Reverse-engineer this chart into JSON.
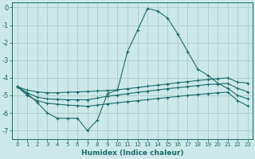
{
  "xlabel": "Humidex (Indice chaleur)",
  "background_color": "#cde8e8",
  "grid_color": "#a8cccc",
  "line_color": "#1a6b6b",
  "xlim": [
    -0.5,
    23.5
  ],
  "ylim": [
    -7.5,
    0.3
  ],
  "yticks": [
    0,
    -1,
    -2,
    -3,
    -4,
    -5,
    -6,
    -7
  ],
  "xticks": [
    0,
    1,
    2,
    3,
    4,
    5,
    6,
    7,
    8,
    9,
    10,
    11,
    12,
    13,
    14,
    15,
    16,
    17,
    18,
    19,
    20,
    21,
    22,
    23
  ],
  "series": [
    {
      "x": [
        0,
        1,
        2,
        3,
        4,
        5,
        6,
        7,
        8,
        9,
        10,
        11,
        12,
        13,
        14,
        15,
        16,
        17,
        18,
        19,
        20,
        21,
        22,
        23
      ],
      "y": [
        -4.5,
        -4.9,
        -5.4,
        -6.0,
        -6.3,
        -6.3,
        -6.3,
        -7.0,
        -6.4,
        -4.9,
        -4.7,
        -2.5,
        -1.3,
        -0.05,
        -0.2,
        -0.6,
        -1.5,
        -2.5,
        -3.5,
        -3.85,
        -4.3,
        -4.6,
        -5.0,
        -5.2
      ]
    },
    {
      "x": [
        0,
        1,
        2,
        3,
        4,
        5,
        6,
        7,
        8,
        9,
        10,
        11,
        12,
        13,
        14,
        15,
        16,
        17,
        18,
        19,
        20,
        21,
        22,
        23
      ],
      "y": [
        -4.5,
        -4.7,
        -4.8,
        -4.85,
        -4.85,
        -4.82,
        -4.8,
        -4.78,
        -4.75,
        -4.72,
        -4.68,
        -4.62,
        -4.55,
        -4.48,
        -4.42,
        -4.35,
        -4.28,
        -4.22,
        -4.15,
        -4.1,
        -4.05,
        -4.0,
        -4.25,
        -4.3
      ]
    },
    {
      "x": [
        0,
        1,
        2,
        3,
        4,
        5,
        6,
        7,
        8,
        9,
        10,
        11,
        12,
        13,
        14,
        15,
        16,
        17,
        18,
        19,
        20,
        21,
        22,
        23
      ],
      "y": [
        -4.5,
        -4.85,
        -5.1,
        -5.2,
        -5.22,
        -5.25,
        -5.25,
        -5.25,
        -5.15,
        -5.05,
        -4.98,
        -4.9,
        -4.83,
        -4.76,
        -4.69,
        -4.62,
        -4.56,
        -4.5,
        -4.44,
        -4.38,
        -4.35,
        -4.32,
        -4.6,
        -4.8
      ]
    },
    {
      "x": [
        0,
        1,
        2,
        3,
        4,
        5,
        6,
        7,
        8,
        9,
        10,
        11,
        12,
        13,
        14,
        15,
        16,
        17,
        18,
        19,
        20,
        21,
        22,
        23
      ],
      "y": [
        -4.5,
        -5.0,
        -5.3,
        -5.45,
        -5.5,
        -5.55,
        -5.58,
        -5.62,
        -5.55,
        -5.48,
        -5.42,
        -5.36,
        -5.3,
        -5.24,
        -5.18,
        -5.12,
        -5.06,
        -5.0,
        -4.95,
        -4.9,
        -4.85,
        -4.82,
        -5.3,
        -5.6
      ]
    }
  ]
}
